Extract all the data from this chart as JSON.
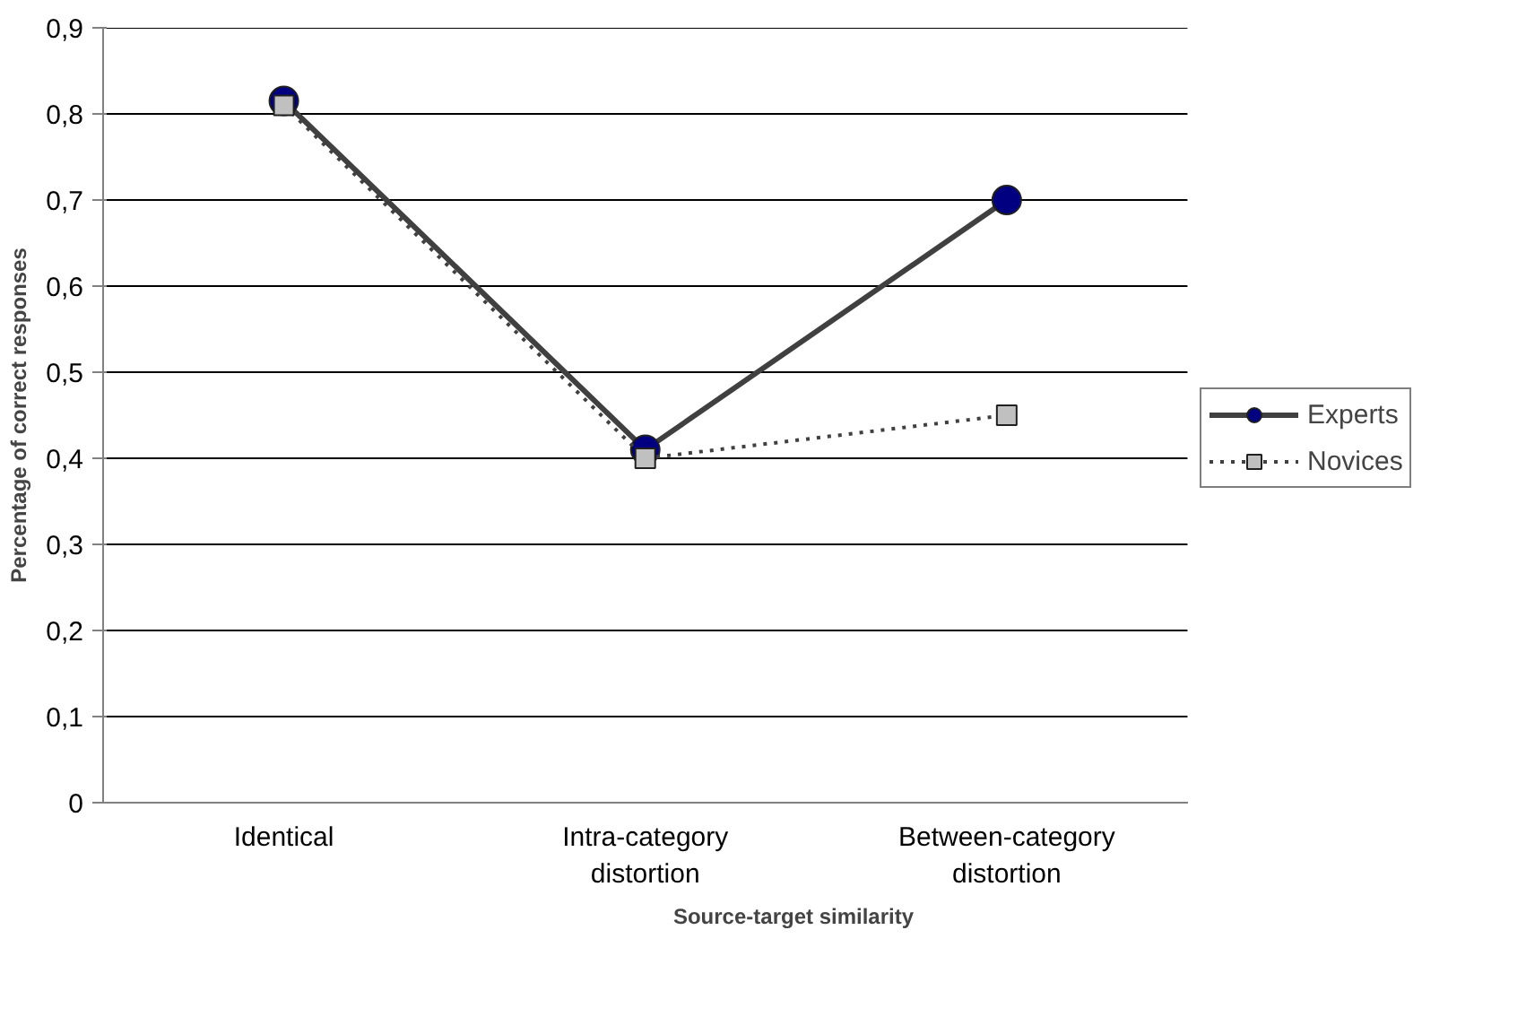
{
  "chart_data": {
    "type": "line",
    "xlabel": "Source-target similarity",
    "ylabel": "Percentage of correct responses",
    "categories": [
      "Identical",
      "Intra-category distortion",
      "Between-category distortion"
    ],
    "series": [
      {
        "name": "Experts",
        "color": "#404040",
        "marker": "circle",
        "line_style": "solid",
        "values": [
          0.815,
          0.41,
          0.7
        ]
      },
      {
        "name": "Novices",
        "color": "#404040",
        "marker": "square",
        "line_style": "dotted",
        "values": [
          0.81,
          0.4,
          0.45
        ]
      }
    ],
    "ylim": [
      0,
      0.9
    ],
    "yticks": [
      0,
      {
        "value": 0.1,
        "label": "0,1"
      },
      {
        "value": 0.2,
        "label": "0,2"
      },
      {
        "value": 0.3,
        "label": "0,3"
      },
      {
        "value": 0.4,
        "label": "0,4"
      },
      {
        "value": 0.5,
        "label": "0,5"
      },
      {
        "value": 0.6,
        "label": "0,6"
      },
      {
        "value": 0.7,
        "label": "0,7"
      },
      {
        "value": 0.8,
        "label": "0,8"
      },
      {
        "value": 0.9,
        "label": "0,9"
      }
    ],
    "grid": "y",
    "legend": "right"
  }
}
